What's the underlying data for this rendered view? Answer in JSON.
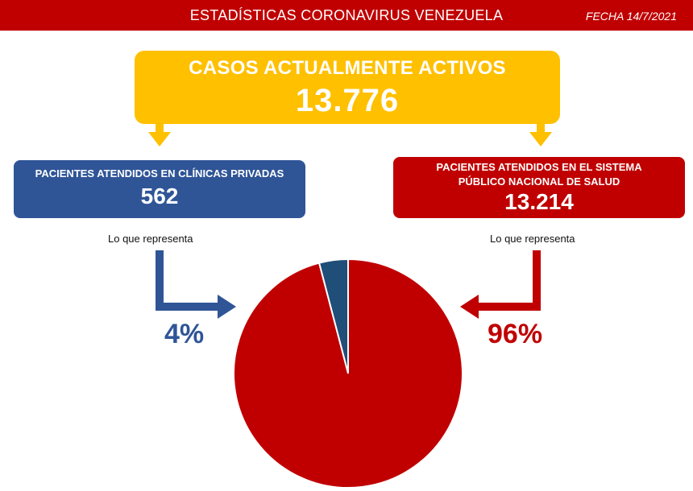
{
  "header": {
    "title": "ESTADÍSTICAS CORONAVIRUS VENEZUELA",
    "date": "FECHA 14/7/2021"
  },
  "active_cases": {
    "title": "CASOS ACTUALMENTE ACTIVOS",
    "value": "13.776"
  },
  "private": {
    "title": "PACIENTES ATENDIDOS EN CLÍNICAS PRIVADAS",
    "value": "562",
    "caption": "Lo que representa",
    "percent": "4%"
  },
  "public": {
    "title": "PACIENTES ATENDIDOS EN EL SISTEMA PÚBLICO NACIONAL DE SALUD",
    "value": "13.214",
    "caption": "Lo que representa",
    "percent": "96%"
  },
  "colors": {
    "header": "#c00000",
    "active": "#ffc000",
    "private": "#2f5597",
    "public": "#c00000",
    "private_slice": "#1f4e79"
  },
  "chart_data": {
    "type": "pie",
    "values": [
      562,
      13214
    ],
    "percent_labels": [
      "4%",
      "96%"
    ]
  }
}
